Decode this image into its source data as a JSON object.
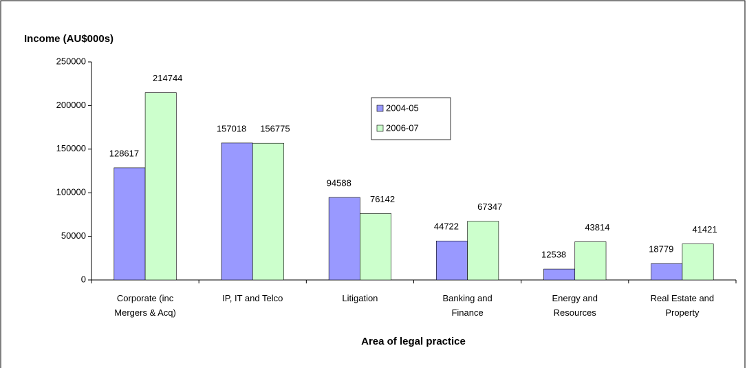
{
  "chart_data": {
    "type": "bar",
    "title": "Income (AU$000s)",
    "x_label": "Area of legal practice",
    "categories": [
      "Corporate (inc\nMergers & Acq)",
      "IP, IT and Telco",
      "Litigation",
      "Banking and\nFinance",
      "Energy and\nResources",
      "Real Estate and\nProperty"
    ],
    "series": [
      {
        "name": "2004-05",
        "color": "#9999ff",
        "values": [
          128617,
          157018,
          94588,
          44722,
          12538,
          18779
        ]
      },
      {
        "name": "2006-07",
        "color": "#ccffcc",
        "values": [
          214744,
          156775,
          76142,
          67347,
          43814,
          41421
        ]
      }
    ],
    "ylim": [
      0,
      250000
    ],
    "yticks": [
      0,
      50000,
      100000,
      150000,
      200000,
      250000
    ],
    "legend": "top-center"
  }
}
